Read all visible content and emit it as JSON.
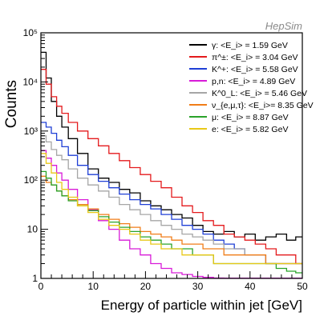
{
  "watermark": "HepSim",
  "chart_data": {
    "type": "line",
    "title": "",
    "xlabel": "Energy of particle within jet [GeV]",
    "ylabel": "Counts",
    "x_ticks": [
      0,
      10,
      20,
      30,
      40,
      50
    ],
    "y_ticks": [
      {
        "value": 1,
        "label": "1"
      },
      {
        "value": 10,
        "label": "10"
      },
      {
        "value": 100,
        "label": "10²"
      },
      {
        "value": 1000,
        "label": "10³"
      },
      {
        "value": 10000,
        "label": "10⁴"
      },
      {
        "value": 100000,
        "label": "10⁵"
      }
    ],
    "xlim": [
      0,
      50
    ],
    "ylim": [
      1,
      100000
    ],
    "log_y": true,
    "histogram_step": true,
    "legend_position": "top-right",
    "x": [
      0.5,
      1.5,
      2.5,
      3.5,
      4.5,
      6,
      8,
      10,
      12,
      14,
      16,
      18,
      20,
      22,
      24,
      26,
      28,
      30,
      32,
      34,
      36,
      38,
      40,
      42,
      44,
      46,
      48,
      49.5
    ],
    "series": [
      {
        "name": "γ: <E_i> = 1.59 GeV",
        "color": "#000000",
        "values": [
          40000,
          12000,
          4000,
          2000,
          1200,
          700,
          350,
          170,
          110,
          90,
          65,
          55,
          38,
          30,
          25,
          20,
          17,
          12,
          9,
          8,
          9,
          7,
          8,
          6,
          7,
          8,
          6,
          7
        ]
      },
      {
        "name": "π^±: <E_i> = 3.04 GeV",
        "color": "#e41a1c",
        "values": [
          18000,
          9000,
          5000,
          3200,
          2300,
          1500,
          1000,
          700,
          500,
          350,
          250,
          180,
          130,
          95,
          70,
          45,
          30,
          22,
          15,
          12,
          8,
          7,
          6,
          5,
          4,
          3,
          3,
          2
        ]
      },
      {
        "name": "K^+: <E_i> = 5.58 GeV",
        "color": "#1f3fd6",
        "values": [
          1500,
          1200,
          900,
          650,
          480,
          320,
          200,
          130,
          95,
          70,
          52,
          40,
          32,
          26,
          20,
          16,
          12,
          10,
          8,
          6,
          5,
          4,
          3,
          3,
          2,
          2,
          2,
          2
        ]
      },
      {
        "name": "p,n: <E_i> = 4.89 GeV",
        "color": "#d81bd8",
        "values": [
          400,
          280,
          200,
          140,
          100,
          65,
          40,
          25,
          15,
          10,
          6,
          4,
          3,
          2,
          1.6,
          1.3,
          1.2,
          1.1,
          1.05,
          1.02,
          1.01,
          1.01,
          1.01,
          1.01,
          1.01,
          1.01,
          1.01,
          1.01
        ]
      },
      {
        "name": "K^0_L: <E_i> = 5.46 GeV",
        "color": "#a6a6a6",
        "values": [
          800,
          600,
          420,
          320,
          260,
          170,
          110,
          80,
          60,
          45,
          32,
          25,
          20,
          15,
          12,
          10,
          8,
          7,
          6,
          5,
          4,
          4,
          3,
          3,
          2,
          2,
          2,
          2
        ]
      },
      {
        "name": "ν_{e,μ,τ}: <E_i>= 8.35 GeV",
        "color": "#f07d18",
        "values": [
          120,
          90,
          80,
          60,
          48,
          40,
          32,
          26,
          20,
          16,
          13,
          11,
          9,
          8,
          7,
          6,
          5,
          5,
          4,
          4,
          3,
          3,
          3,
          3,
          2,
          2,
          2,
          2
        ]
      },
      {
        "name": "μ: <E_i> = 8.87 GeV",
        "color": "#2aa32a",
        "values": [
          150,
          110,
          80,
          60,
          48,
          38,
          30,
          24,
          18,
          14,
          11,
          9,
          7,
          6,
          5,
          4,
          4,
          3,
          3,
          2,
          2,
          2,
          2,
          2,
          2,
          1.6,
          1.4,
          1.3
        ]
      },
      {
        "name": "e: <E_i> = 5.82 GeV",
        "color": "#e8c817",
        "values": [
          350,
          220,
          140,
          90,
          65,
          45,
          30,
          22,
          16,
          12,
          10,
          8,
          6,
          5,
          4,
          4,
          3,
          3,
          3,
          2,
          2,
          2,
          2,
          2,
          2,
          2,
          2,
          2
        ]
      }
    ]
  }
}
